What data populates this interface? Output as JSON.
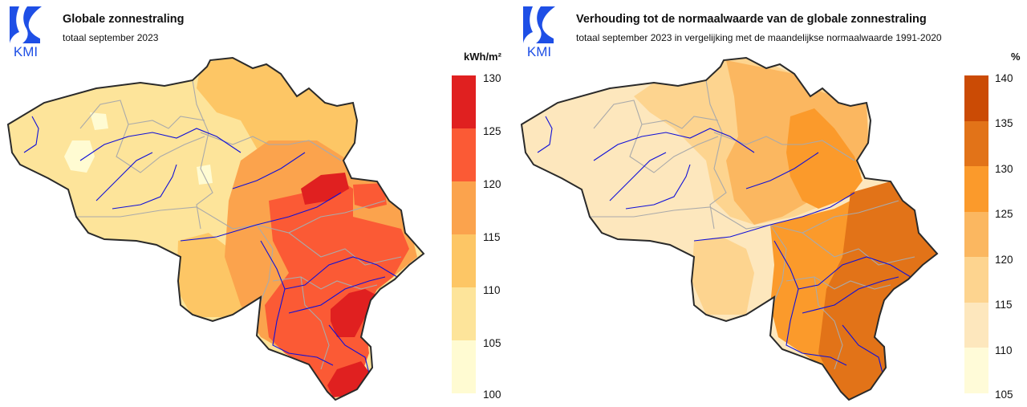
{
  "maps": [
    {
      "id": "left",
      "logo_text": "KMI",
      "title": "Globale zonnestraling",
      "subtitle": "totaal september 2023",
      "unit": "kWh/m²",
      "legend": {
        "ticks": [
          "130",
          "125",
          "120",
          "115",
          "110",
          "105",
          "100"
        ],
        "bins": [
          {
            "range": "125-130",
            "color": "#e02020"
          },
          {
            "range": "120-125",
            "color": "#fb5a35"
          },
          {
            "range": "115-120",
            "color": "#fba34d"
          },
          {
            "range": "110-115",
            "color": "#fdc665"
          },
          {
            "range": "105-110",
            "color": "#fde49a"
          },
          {
            "range": "100-105",
            "color": "#fffbd2"
          }
        ]
      },
      "zones_colors": [
        "#fde49a",
        "#fdc665",
        "#fba34d",
        "#fb5a35",
        "#e02020",
        "#fffbd2"
      ]
    },
    {
      "id": "right",
      "logo_text": "KMI",
      "title": "Verhouding tot de normaalwaarde van de globale zonnestraling",
      "subtitle": "totaal september 2023 in vergelijking met de maandelijkse normaalwaarde 1991-2020",
      "unit": "%",
      "legend": {
        "ticks": [
          "140",
          "135",
          "130",
          "125",
          "120",
          "115",
          "110",
          "105"
        ],
        "bins": [
          {
            "range": "135-140",
            "color": "#cb4b05"
          },
          {
            "range": "130-135",
            "color": "#e27318"
          },
          {
            "range": "125-130",
            "color": "#fb9a2b"
          },
          {
            "range": "120-125",
            "color": "#fbb760"
          },
          {
            "range": "115-120",
            "color": "#fdd48f"
          },
          {
            "range": "110-115",
            "color": "#fde7bd"
          },
          {
            "range": "105-110",
            "color": "#fffbd8"
          }
        ]
      },
      "zones_colors": [
        "#fde7bd",
        "#fdd48f",
        "#fbb760",
        "#fb9a2b",
        "#e27318"
      ]
    }
  ],
  "colors": {
    "border": "#2a2a2a",
    "rivers": "#1010d8",
    "provinces": "#aaaaaa",
    "logo_blue": "#1e4fe6"
  }
}
